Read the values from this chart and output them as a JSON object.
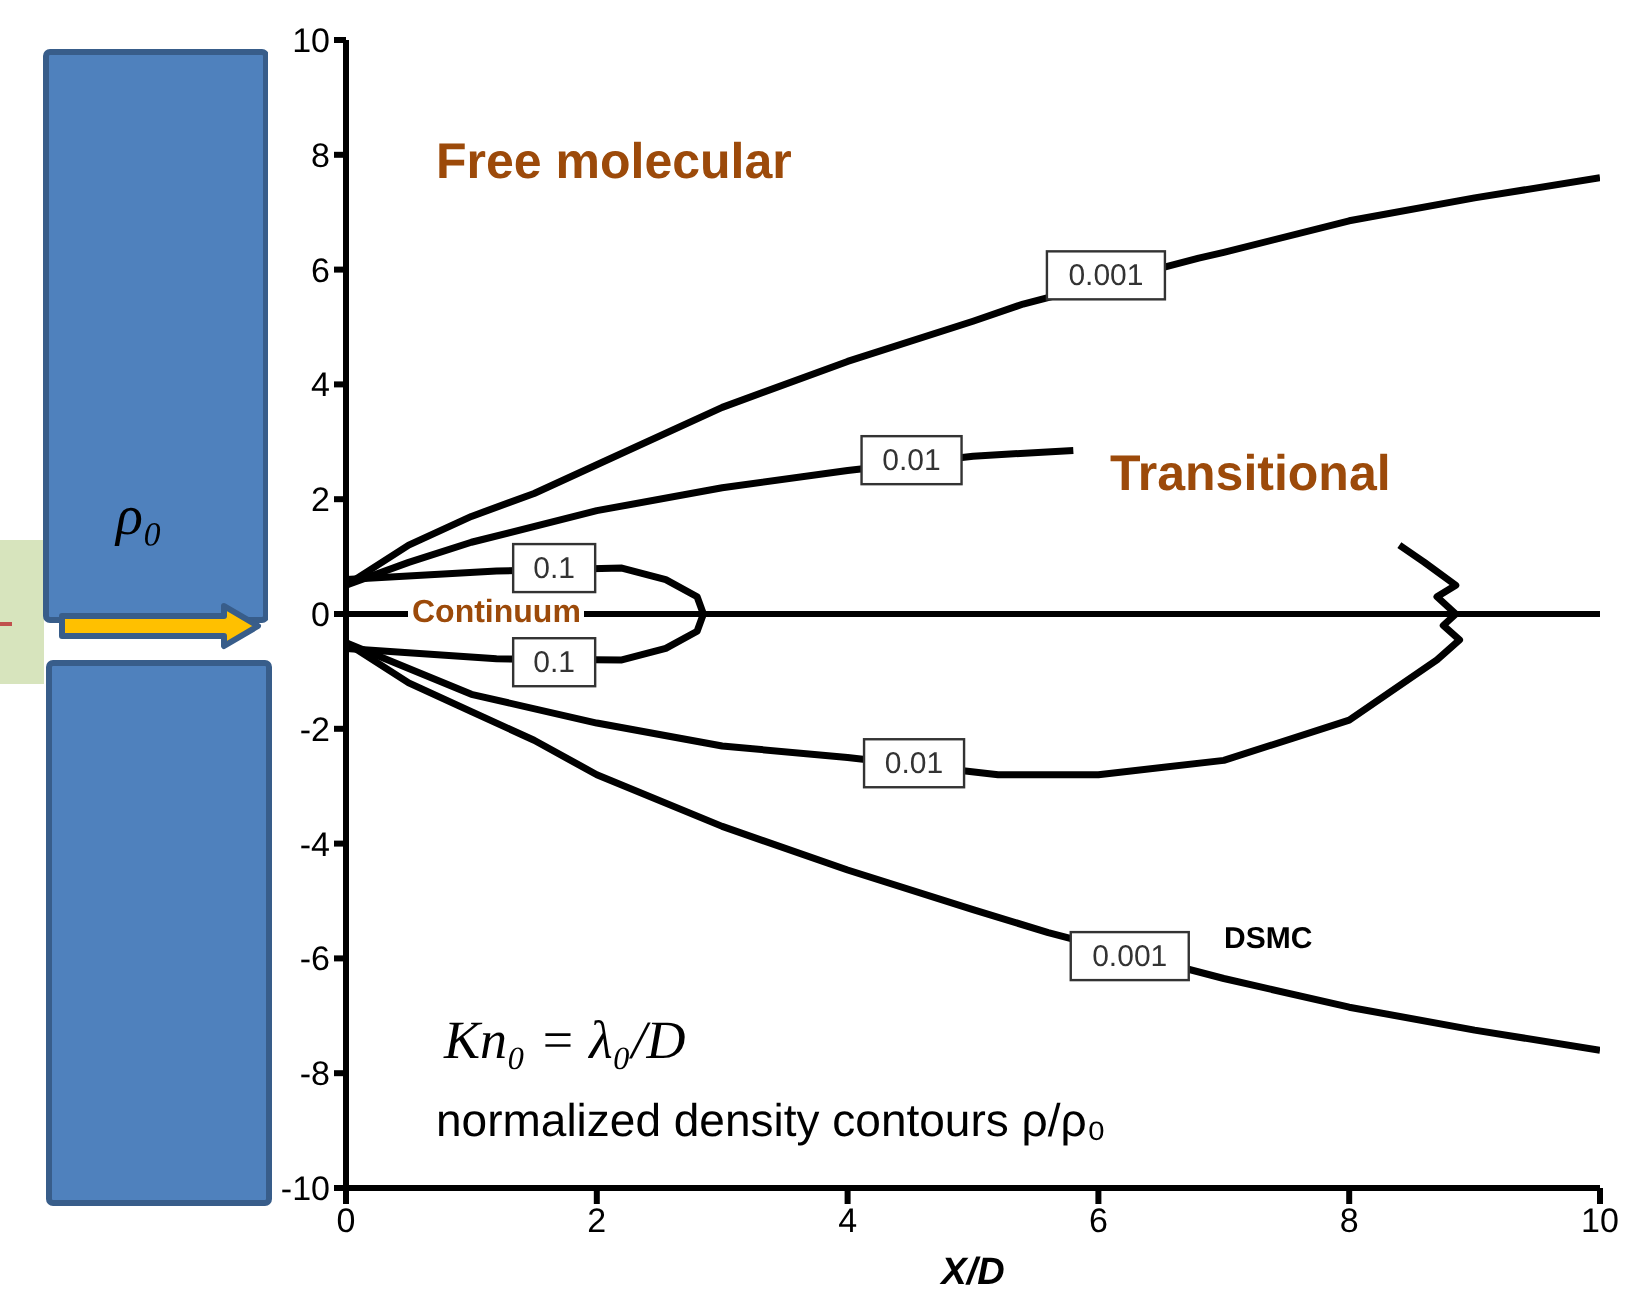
{
  "chart_data": {
    "type": "line",
    "xlabel": "X/D",
    "xlim": [
      0,
      10
    ],
    "xticks": [
      0,
      2,
      4,
      6,
      8,
      10
    ],
    "ylim": [
      -10,
      10
    ],
    "yticks": [
      -10,
      -8,
      -6,
      -4,
      -2,
      0,
      2,
      4,
      6,
      8,
      10
    ],
    "grid": false,
    "series": [
      {
        "color": "#000000",
        "x": [
          0,
          0.5,
          1,
          1.5,
          2,
          3,
          4,
          5,
          5.4,
          6.8,
          7,
          8,
          9,
          10
        ],
        "values": [
          0.5,
          1.2,
          1.7,
          2.1,
          2.6,
          3.6,
          4.4,
          5.1,
          5.4,
          6.2,
          6.3,
          6.85,
          7.25,
          7.6
        ]
      },
      {
        "color": "#000000",
        "x": [
          0,
          0.5,
          1,
          2,
          3,
          4,
          5,
          5.8
        ],
        "values": [
          0.5,
          0.9,
          1.25,
          1.8,
          2.2,
          2.5,
          2.75,
          2.85
        ]
      },
      {
        "color": "#000000",
        "x": [
          0,
          1.2,
          2.2,
          2.55,
          2.8,
          2.85,
          2.8,
          2.55,
          2.2,
          1.2,
          0
        ],
        "values": [
          0.6,
          0.75,
          0.8,
          0.6,
          0.3,
          0,
          -0.3,
          -0.6,
          -0.8,
          -0.78,
          -0.6
        ]
      },
      {
        "color": "#000000",
        "x": [
          0,
          1,
          2,
          3,
          4,
          5.2,
          6,
          7,
          8,
          8.7,
          8.88,
          8.75,
          8.85,
          8.7,
          8.85,
          8.6,
          8.4
        ],
        "values": [
          -0.5,
          -1.4,
          -1.9,
          -2.3,
          -2.5,
          -2.8,
          -2.8,
          -2.55,
          -1.85,
          -0.8,
          -0.45,
          -0.2,
          0,
          0.3,
          0.5,
          0.9,
          1.2
        ]
      },
      {
        "color": "#000000",
        "x": [
          0,
          0.5,
          1,
          1.5,
          2,
          3,
          4,
          5,
          5.6,
          7,
          8,
          9,
          10
        ],
        "values": [
          -0.5,
          -1.2,
          -1.7,
          -2.2,
          -2.8,
          -3.7,
          -4.46,
          -5.15,
          -5.55,
          -6.35,
          -6.85,
          -7.25,
          -7.6
        ]
      }
    ],
    "ref_lines": [
      {
        "axis": "y",
        "value": 0,
        "color": "#000000"
      }
    ],
    "annotations": [
      "Free molecular",
      "Transitional",
      "Continuum",
      "DSMC",
      "Kn₀ = λ₀/D",
      "normalized density contours ρ/ρ₀",
      "ρ₀",
      {
        "text": "0.001",
        "x": 6.06,
        "y": 5.9
      },
      {
        "text": "0.01",
        "x": 4.51,
        "y": 2.68
      },
      {
        "text": "0.1",
        "x": 1.66,
        "y": 0.8
      },
      {
        "text": "0.1",
        "x": 1.66,
        "y": -0.84
      },
      {
        "text": "0.01",
        "x": 4.53,
        "y": -2.6
      },
      {
        "text": "0.001",
        "x": 6.25,
        "y": -5.96
      }
    ]
  }
}
